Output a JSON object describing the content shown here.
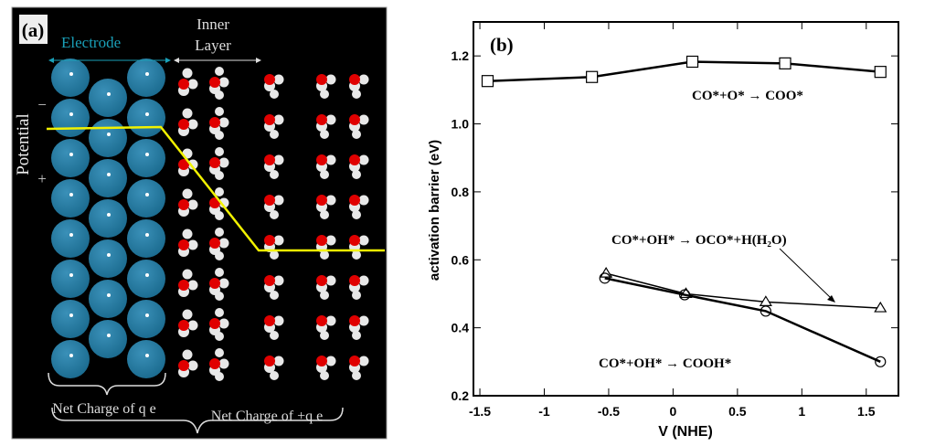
{
  "panel_a": {
    "label": "(a)",
    "electrode_label": "Electrode",
    "inner_layer_label_1": "Inner",
    "inner_layer_label_2": "Layer",
    "potential_label": "Potential",
    "minus_sign": "−",
    "plus_sign": "+",
    "net_charge_electrode": "Net Charge of q e",
    "net_charge_water": "Net Charge of +q e",
    "colors": {
      "background": "#000000",
      "electrode_atom": "#1a6a8e",
      "oxygen": "#e00000",
      "hydrogen": "#e8e8e8",
      "potential_line": "#f2f200",
      "electrode_text": "#1aa0b8"
    }
  },
  "chart_data": {
    "type": "line",
    "panel_label": "(b)",
    "title": "",
    "xlabel": "V (NHE)",
    "ylabel": "activation barrier (eV)",
    "xlim": [
      -1.55,
      1.75
    ],
    "ylim": [
      0.2,
      1.3
    ],
    "xticks": [
      -1.5,
      -1,
      -0.5,
      0,
      0.5,
      1,
      1.5
    ],
    "xtick_labels": [
      "-1.5",
      "-1",
      "-0.5",
      "0",
      "0.5",
      "1",
      "1.5"
    ],
    "yticks": [
      0.2,
      0.4,
      0.6,
      0.8,
      1.0,
      1.2
    ],
    "ytick_labels": [
      "0.2",
      "0.4",
      "0.6",
      "0.8",
      "1.0",
      "1.2"
    ],
    "grid": false,
    "series": [
      {
        "name": "CO*+O* → COO*",
        "marker": "square",
        "x": [
          -1.44,
          -0.63,
          0.15,
          0.87,
          1.61
        ],
        "y": [
          1.126,
          1.138,
          1.183,
          1.178,
          1.153
        ]
      },
      {
        "name": "CO*+OH* → OCO*+H(H₂O)",
        "marker": "triangle",
        "x": [
          -0.52,
          0.1,
          0.72,
          1.61
        ],
        "y": [
          0.56,
          0.5,
          0.476,
          0.458
        ]
      },
      {
        "name": "CO*+OH* → COOH*",
        "marker": "circle",
        "x": [
          -0.53,
          0.09,
          0.72,
          1.61
        ],
        "y": [
          0.546,
          0.497,
          0.449,
          0.3
        ]
      }
    ],
    "annotations": [
      "CO*+O* → COO*",
      "CO*+OH* → OCO*+H(H₂O)",
      "CO*+OH* → COOH*"
    ]
  }
}
